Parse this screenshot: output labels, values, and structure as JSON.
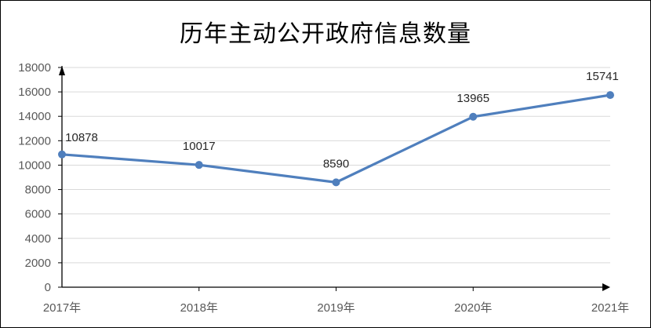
{
  "chart_data": {
    "type": "line",
    "title": "历年主动公开政府信息数量",
    "categories": [
      "2017年",
      "2018年",
      "2019年",
      "2020年",
      "2021年"
    ],
    "series": [
      {
        "values": [
          10878,
          10017,
          8590,
          13965,
          15741
        ]
      }
    ],
    "data_labels": [
      "10878",
      "10017",
      "8590",
      "13965",
      "15741"
    ],
    "ylim": [
      0,
      18000
    ],
    "yticks": [
      "0",
      "2000",
      "4000",
      "6000",
      "8000",
      "10000",
      "12000",
      "14000",
      "16000",
      "18000"
    ],
    "grid": true,
    "legend": "none",
    "colors": {
      "line": "#4f7fbd",
      "grid": "#d9d9d9",
      "axis": "#000000"
    }
  }
}
